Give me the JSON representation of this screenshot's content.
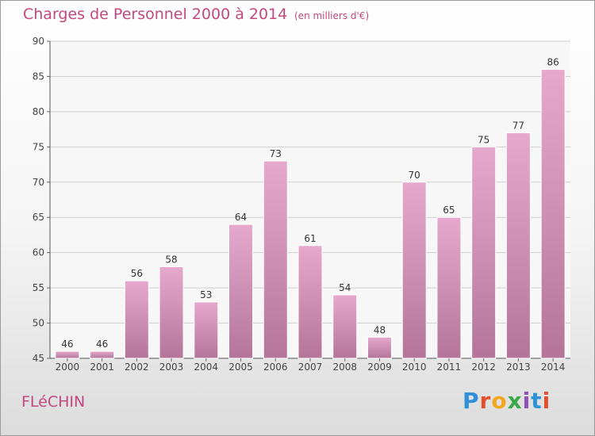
{
  "title": "Charges de Personnel 2000 à 2014",
  "subtitle": "(en milliers d'€)",
  "commune": "FLéCHIN",
  "logo": {
    "text": "Proxiti",
    "letter_colors": [
      "#2f8fd8",
      "#e2502a",
      "#f2a81d",
      "#3aa84a",
      "#8d4fb8",
      "#2f8fd8",
      "#e2502a"
    ]
  },
  "colors": {
    "title": "#c2487f",
    "bar_light": "#e6a9cd",
    "bar_dark": "#b5759b",
    "grid": "#d0d0d0"
  },
  "chart_data": {
    "type": "bar",
    "title": "Charges de Personnel 2000 à 2014",
    "subtitle": "(en milliers d'€)",
    "categories": [
      "2000",
      "2001",
      "2002",
      "2003",
      "2004",
      "2005",
      "2006",
      "2007",
      "2008",
      "2009",
      "2010",
      "2011",
      "2012",
      "2013",
      "2014"
    ],
    "values": [
      46,
      46,
      56,
      58,
      53,
      64,
      73,
      61,
      54,
      48,
      70,
      65,
      75,
      77,
      86
    ],
    "ylim": [
      45,
      90
    ],
    "yticks": [
      45,
      50,
      55,
      60,
      65,
      70,
      75,
      80,
      85,
      90
    ],
    "grid": true,
    "data_labels": true,
    "legend": "none"
  }
}
